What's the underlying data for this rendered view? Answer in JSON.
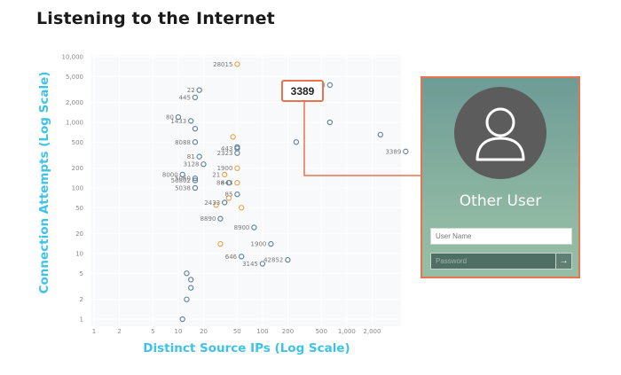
{
  "title": "Listening to the Internet",
  "chart_data": {
    "type": "scatter",
    "xlabel": "Distinct Source IPs (Log Scale)",
    "ylabel": "Connection Attempts (Log Scale)",
    "xscale": "log",
    "yscale": "log",
    "xlim": [
      1,
      4000
    ],
    "ylim": [
      1,
      10000
    ],
    "x_ticks": [
      {
        "value": 1,
        "label": "1"
      },
      {
        "value": 2,
        "label": "2"
      },
      {
        "value": 5,
        "label": "5"
      },
      {
        "value": 10,
        "label": "10"
      },
      {
        "value": 20,
        "label": "20"
      },
      {
        "value": 50,
        "label": "50"
      },
      {
        "value": 100,
        "label": "100"
      },
      {
        "value": 200,
        "label": "200"
      },
      {
        "value": 500,
        "label": "500"
      },
      {
        "value": 1000,
        "label": "1,000"
      },
      {
        "value": 2000,
        "label": "2,000"
      }
    ],
    "y_ticks": [
      {
        "value": 1,
        "label": "1"
      },
      {
        "value": 2,
        "label": "2"
      },
      {
        "value": 5,
        "label": "5"
      },
      {
        "value": 10,
        "label": "10"
      },
      {
        "value": 20,
        "label": "20"
      },
      {
        "value": 50,
        "label": "50"
      },
      {
        "value": 100,
        "label": "100"
      },
      {
        "value": 200,
        "label": "200"
      },
      {
        "value": 500,
        "label": "500"
      },
      {
        "value": 1000,
        "label": "1,000"
      },
      {
        "value": 2000,
        "label": "2,000"
      },
      {
        "value": 5000,
        "label": "5,000"
      },
      {
        "value": 10000,
        "label": "10,000"
      }
    ],
    "grid": true,
    "series": [
      {
        "color": "#5a7e96",
        "points": [
          [
            2.8,
            3700,
            "23"
          ],
          [
            1.25,
            3100,
            "22"
          ],
          [
            1.2,
            2400,
            "445"
          ],
          [
            1.0,
            1200,
            "80"
          ],
          [
            1.15,
            1050,
            "1433"
          ],
          [
            1.2,
            800,
            ""
          ],
          [
            2.8,
            1000,
            ""
          ],
          [
            2.4,
            500,
            ""
          ],
          [
            3.7,
            360,
            "3389"
          ],
          [
            1.7,
            340,
            "2323"
          ],
          [
            1.25,
            300,
            "81"
          ],
          [
            1.7,
            420,
            ""
          ],
          [
            1.05,
            160,
            "8000"
          ],
          [
            3.4,
            650,
            ""
          ],
          [
            5.6,
            510,
            "6545"
          ],
          [
            1.2,
            500,
            "8088"
          ],
          [
            1.7,
            400,
            "443"
          ],
          [
            5.3,
            330,
            "28015"
          ],
          [
            1.3,
            230,
            "3128"
          ],
          [
            1.2,
            130,
            "50802"
          ],
          [
            1.2,
            140,
            "5060"
          ],
          [
            1.6,
            120,
            "88"
          ],
          [
            1.7,
            80,
            "85"
          ],
          [
            1.2,
            100,
            "5038"
          ],
          [
            1.55,
            60,
            "2433"
          ],
          [
            1.5,
            34,
            "8890"
          ],
          [
            1.9,
            25,
            "8900"
          ],
          [
            2.1,
            14,
            "1900"
          ],
          [
            1.75,
            9,
            "646"
          ],
          [
            2.0,
            7,
            "3145"
          ],
          [
            2.3,
            8,
            "42852"
          ],
          [
            1.1,
            5,
            ""
          ],
          [
            1.15,
            4,
            ""
          ],
          [
            1.15,
            3,
            ""
          ],
          [
            1.1,
            2,
            ""
          ],
          [
            1.05,
            1,
            ""
          ]
        ]
      },
      {
        "color": "#e8a24a",
        "points": [
          [
            1.7,
            7700,
            "28015"
          ],
          [
            1.7,
            200,
            "1900"
          ],
          [
            1.7,
            120,
            "443"
          ],
          [
            1.55,
            160,
            "21"
          ],
          [
            1.75,
            50,
            ""
          ],
          [
            1.45,
            55,
            ""
          ],
          [
            1.5,
            14,
            ""
          ],
          [
            1.6,
            70,
            ""
          ],
          [
            1.65,
            600,
            ""
          ]
        ]
      }
    ]
  },
  "callout": {
    "label": "3389"
  },
  "login": {
    "title": "Other User",
    "username_placeholder": "User Name",
    "password_placeholder": "Password",
    "submit_glyph": "→"
  }
}
